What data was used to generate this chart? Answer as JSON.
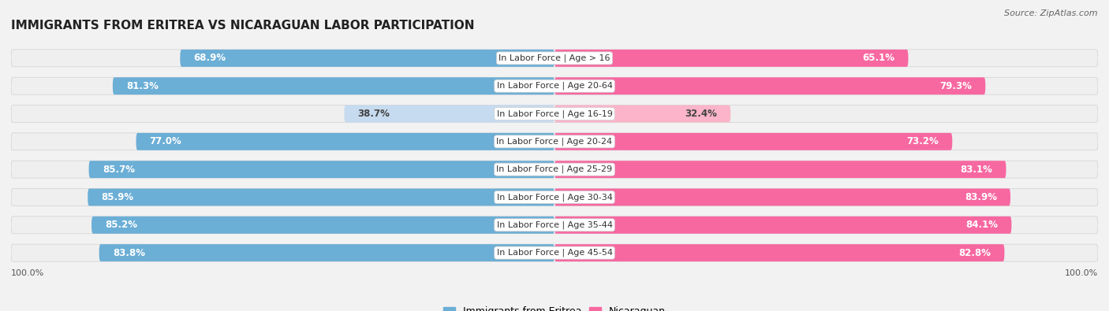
{
  "title": "IMMIGRANTS FROM ERITREA VS NICARAGUAN LABOR PARTICIPATION",
  "source": "Source: ZipAtlas.com",
  "categories": [
    "In Labor Force | Age > 16",
    "In Labor Force | Age 20-64",
    "In Labor Force | Age 16-19",
    "In Labor Force | Age 20-24",
    "In Labor Force | Age 25-29",
    "In Labor Force | Age 30-34",
    "In Labor Force | Age 35-44",
    "In Labor Force | Age 45-54"
  ],
  "eritrea_values": [
    68.9,
    81.3,
    38.7,
    77.0,
    85.7,
    85.9,
    85.2,
    83.8
  ],
  "nicaraguan_values": [
    65.1,
    79.3,
    32.4,
    73.2,
    83.1,
    83.9,
    84.1,
    82.8
  ],
  "eritrea_color": "#6baed6",
  "eritrea_color_light": "#c6dbef",
  "nicaraguan_color": "#f768a1",
  "nicaraguan_color_light": "#fbb4c9",
  "bg_color": "#f2f2f2",
  "bar_bg_color": "#e8e8e8",
  "row_bg": "#f8f8f8",
  "max_value": 100.0,
  "label_fontsize": 8.0,
  "title_fontsize": 11,
  "source_fontsize": 8,
  "legend_fontsize": 9,
  "value_fontsize": 8.5
}
